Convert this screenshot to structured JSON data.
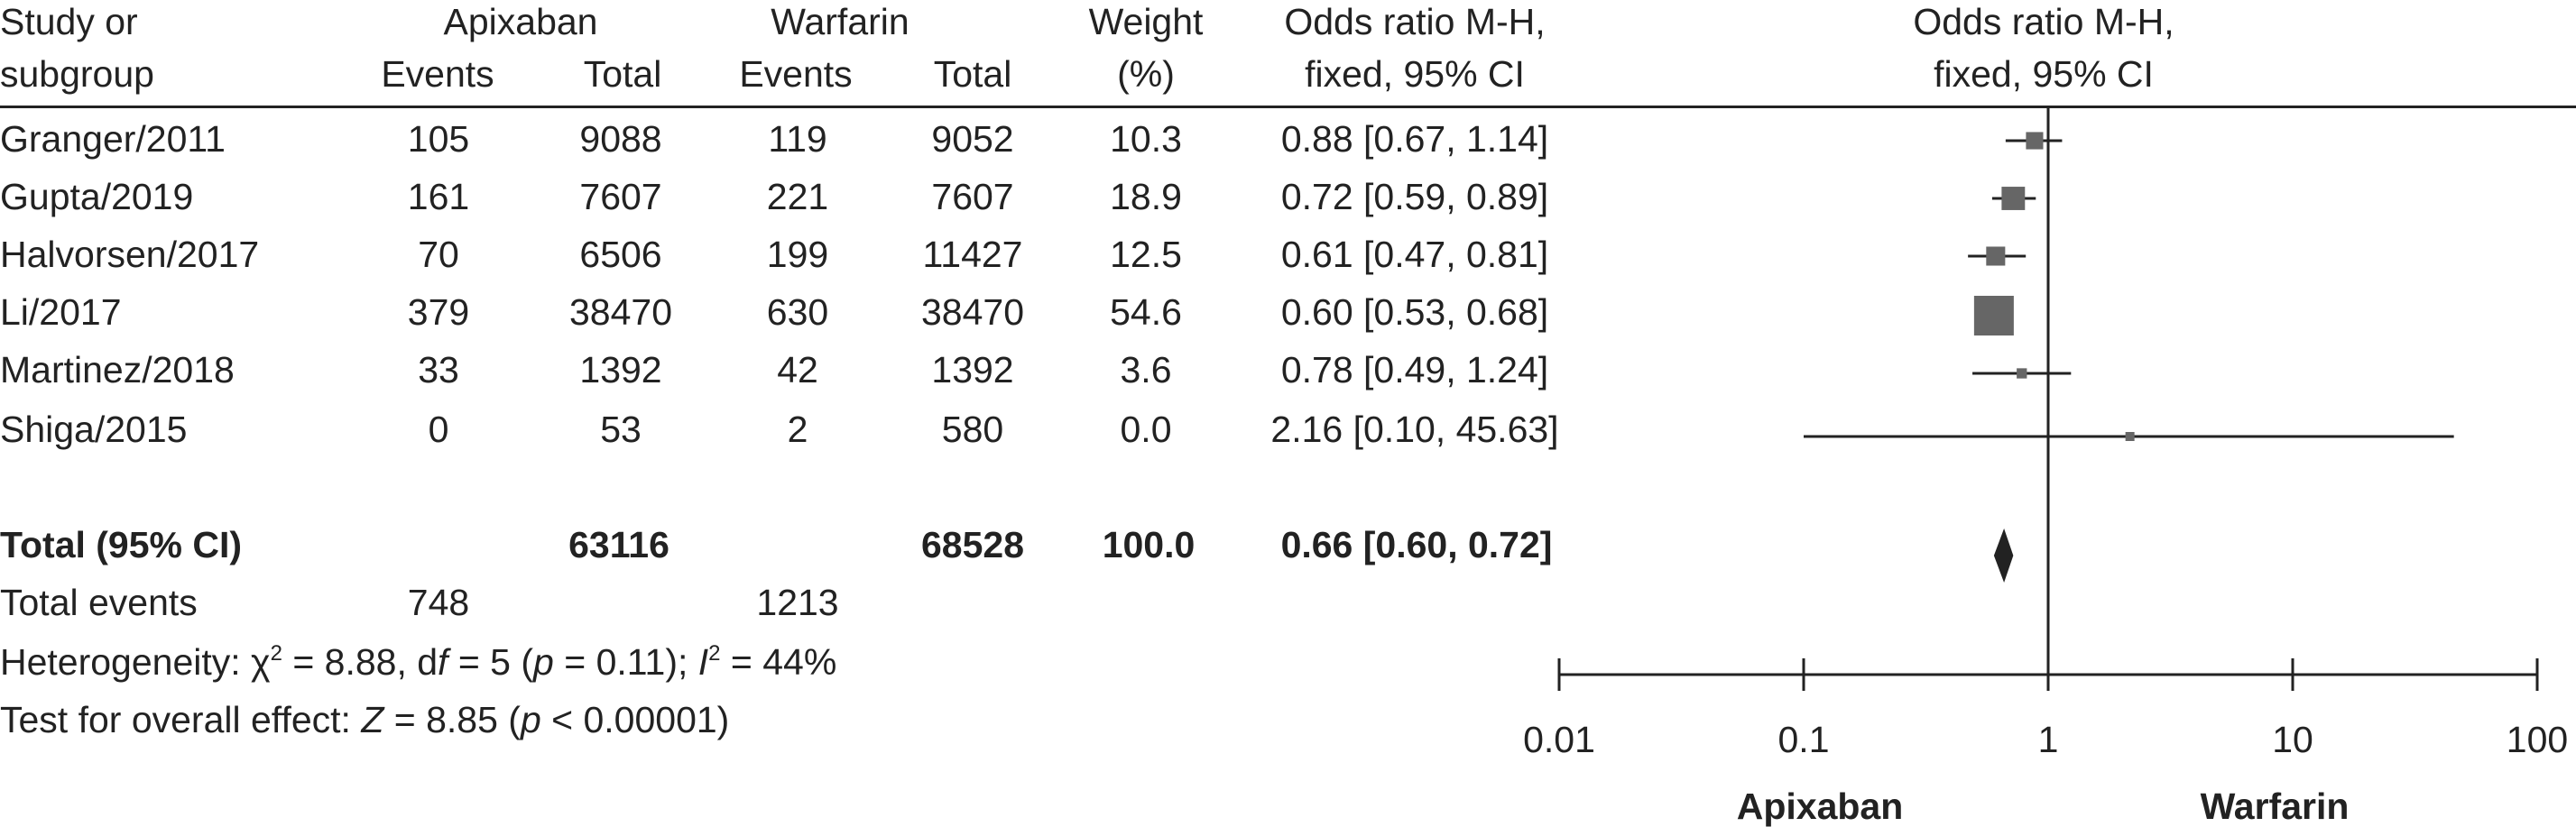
{
  "headers": {
    "study": [
      "Study or",
      "subgroup"
    ],
    "apixaban": "Apixaban",
    "warfarin": "Warfarin",
    "events": "Events",
    "total": "Total",
    "weight": [
      "Weight",
      "(%)"
    ],
    "or_table": [
      "Odds ratio M-H,",
      "fixed, 95% CI"
    ],
    "or_plot": [
      "Odds ratio M-H,",
      "fixed, 95% CI"
    ]
  },
  "studies": [
    {
      "name": "Granger/2011",
      "apx_events": "105",
      "apx_total": "9088",
      "war_events": "119",
      "war_total": "9052",
      "weight": "10.3",
      "ci_text": "0.88 [0.67, 1.14]"
    },
    {
      "name": "Gupta/2019",
      "apx_events": "161",
      "apx_total": "7607",
      "war_events": "221",
      "war_total": "7607",
      "weight": "18.9",
      "ci_text": "0.72 [0.59, 0.89]"
    },
    {
      "name": "Halvorsen/2017",
      "apx_events": "70",
      "apx_total": "6506",
      "war_events": "199",
      "war_total": "11427",
      "weight": "12.5",
      "ci_text": "0.61 [0.47, 0.81]"
    },
    {
      "name": "Li/2017",
      "apx_events": "379",
      "apx_total": "38470",
      "war_events": "630",
      "war_total": "38470",
      "weight": "54.6",
      "ci_text": "0.60 [0.53, 0.68]"
    },
    {
      "name": "Martinez/2018",
      "apx_events": "33",
      "apx_total": "1392",
      "war_events": "42",
      "war_total": "1392",
      "weight": "3.6",
      "ci_text": "0.78 [0.49, 1.24]"
    },
    {
      "name": "Shiga/2015",
      "apx_events": "0",
      "apx_total": "53",
      "war_events": "2",
      "war_total": "580",
      "weight": "0.0",
      "ci_text": "2.16 [0.10, 45.63]"
    }
  ],
  "total": {
    "label": "Total (95% CI)",
    "apx_total": "63116",
    "war_total": "68528",
    "weight": "100.0",
    "ci_text": "0.66 [0.60, 0.72]"
  },
  "total_events": {
    "label": "Total events",
    "apx": "748",
    "war": "1213"
  },
  "heterogeneity": {
    "prefix": "Heterogeneity: χ",
    "sup1": "2",
    "mid1": " = 8.88, d",
    "f": "f",
    "mid2": " = 5 (",
    "p": "p",
    "mid3": " = 0.11); ",
    "I": "I",
    "sup2": "2",
    "end": " = 44%"
  },
  "overall": {
    "prefix": "Test for overall effect: ",
    "Z": "Z",
    "mid1": " = 8.85 (",
    "p": "p",
    "end": " < 0.00001)"
  },
  "chart_data": {
    "type": "forest",
    "scale": "log",
    "xlim": [
      0.01,
      100
    ],
    "ticks": [
      0.01,
      0.1,
      1,
      10,
      100
    ],
    "tick_labels": [
      "0.01",
      "0.1",
      "1",
      "10",
      "100"
    ],
    "reference_line": 1,
    "left_label": "Apixaban",
    "right_label": "Warfarin",
    "studies": [
      {
        "name": "Granger/2011",
        "or": 0.88,
        "lo": 0.67,
        "hi": 1.14,
        "weight": 10.3
      },
      {
        "name": "Gupta/2019",
        "or": 0.72,
        "lo": 0.59,
        "hi": 0.89,
        "weight": 18.9
      },
      {
        "name": "Halvorsen/2017",
        "or": 0.61,
        "lo": 0.47,
        "hi": 0.81,
        "weight": 12.5
      },
      {
        "name": "Li/2017",
        "or": 0.6,
        "lo": 0.53,
        "hi": 0.68,
        "weight": 54.6
      },
      {
        "name": "Martinez/2018",
        "or": 0.78,
        "lo": 0.49,
        "hi": 1.24,
        "weight": 3.6
      },
      {
        "name": "Shiga/2015",
        "or": 2.16,
        "lo": 0.1,
        "hi": 45.63,
        "weight": 0.0
      }
    ],
    "pooled": {
      "or": 0.66,
      "lo": 0.6,
      "hi": 0.72
    },
    "colors": {
      "marker": "#666666",
      "line": "#222222",
      "diamond": "#222222"
    }
  }
}
